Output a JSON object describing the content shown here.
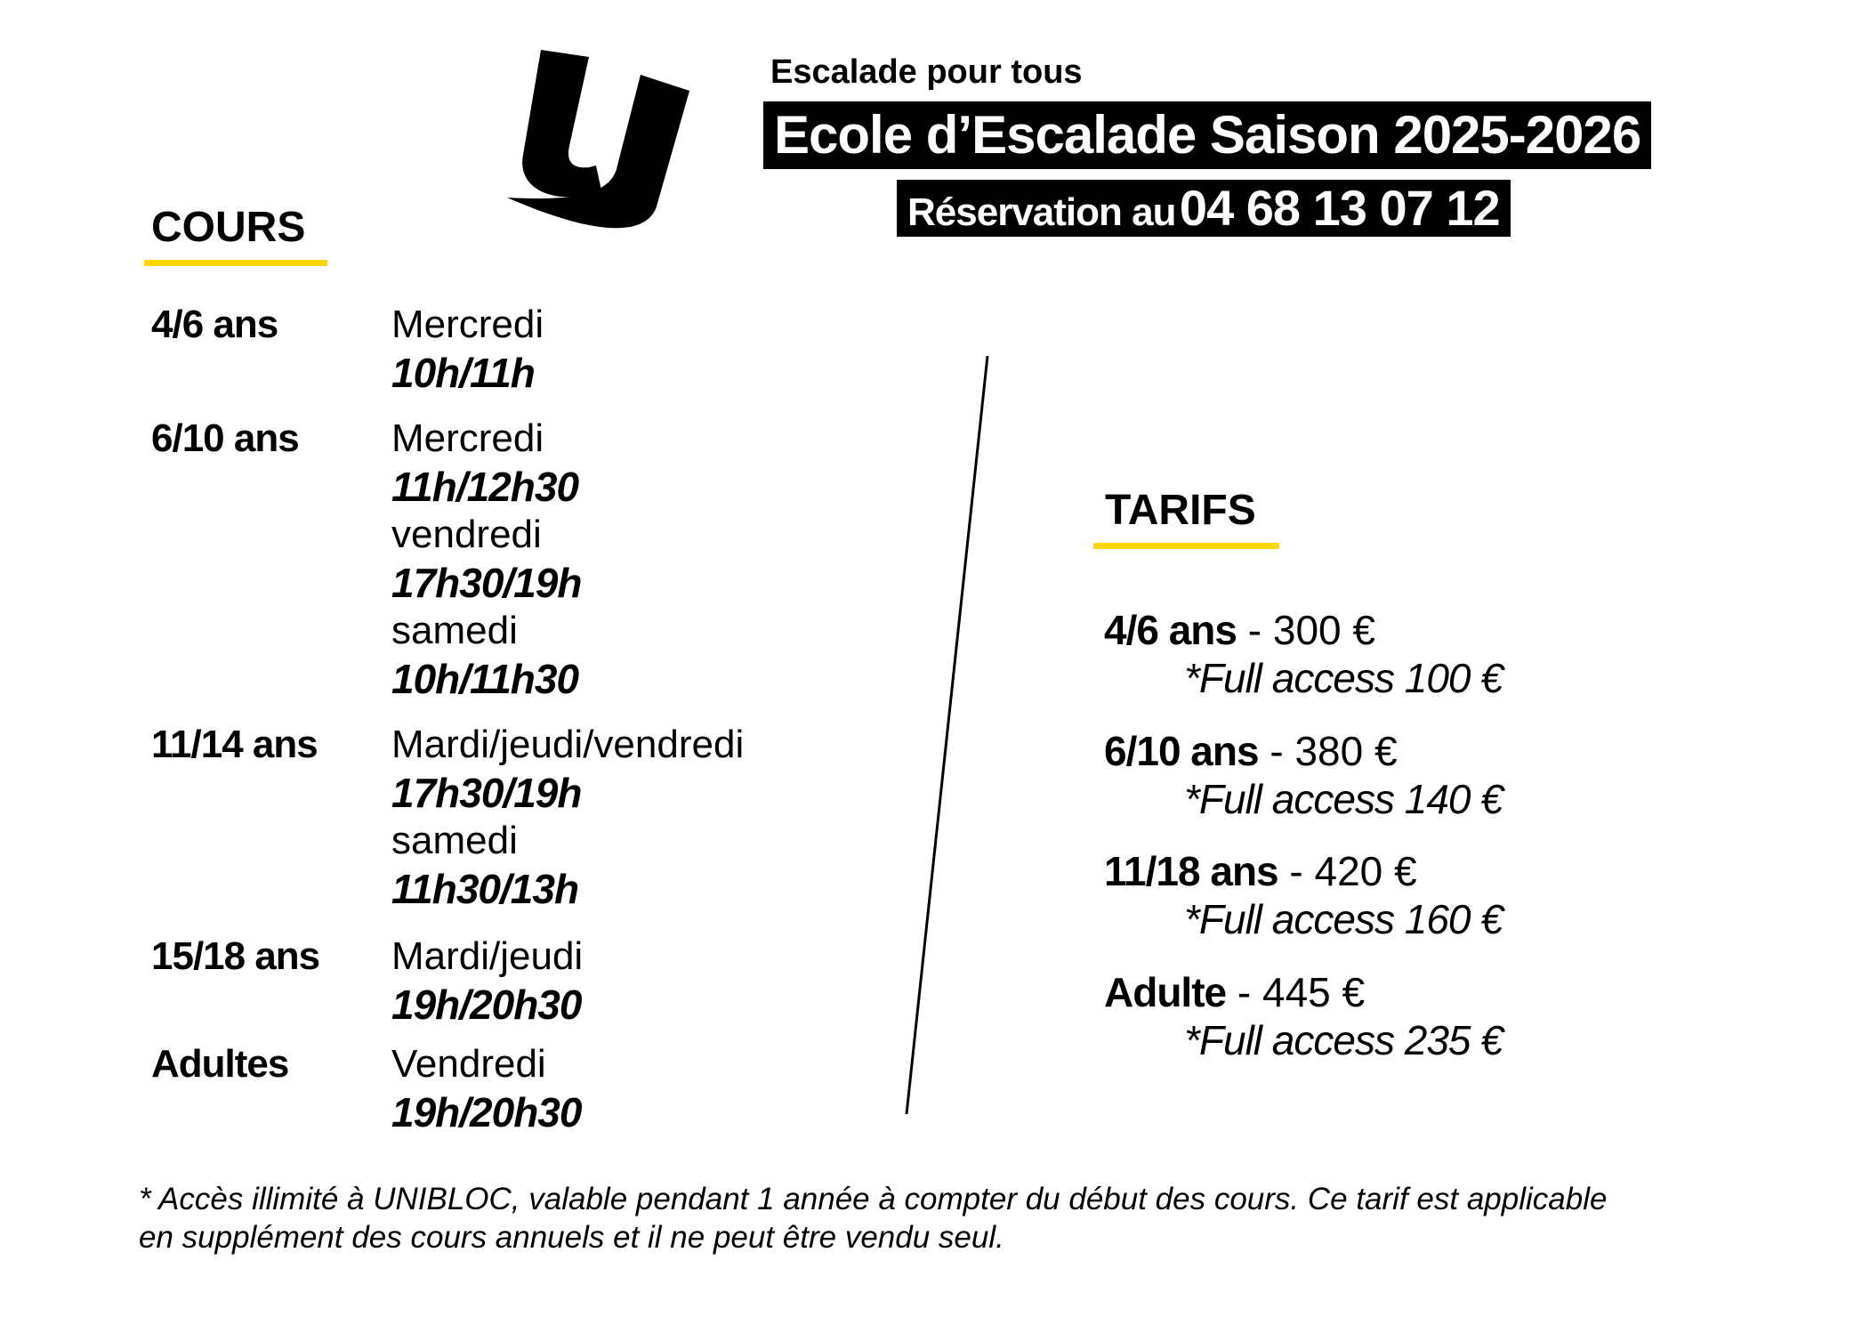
{
  "colors": {
    "accent": "#FFD600",
    "bar": "#000000",
    "text": "#000000"
  },
  "brand": {
    "logo_icon": "unibloc-u-logo"
  },
  "header": {
    "kicker": "Escalade pour tous",
    "title": "Ecole d’Escalade Saison 2025-2026",
    "reservation_label": "Réservation au",
    "reservation_phone": "04 68 13 07 12"
  },
  "cours": {
    "title": "COURS",
    "groups": [
      {
        "age": "4/6 ans",
        "lines": [
          "Mercredi",
          "10h/11h"
        ]
      },
      {
        "age": "6/10 ans",
        "lines": [
          "Mercredi",
          "11h/12h30",
          "vendredi",
          "17h30/19h",
          "samedi",
          "10h/11h30"
        ]
      },
      {
        "age": "11/14 ans",
        "lines": [
          "Mardi/jeudi/vendredi",
          "17h30/19h",
          "samedi",
          "11h30/13h"
        ]
      },
      {
        "age": "15/18 ans",
        "lines": [
          "Mardi/jeudi",
          "19h/20h30"
        ]
      },
      {
        "age": "Adultes",
        "lines": [
          "Vendredi",
          "19h/20h30"
        ]
      }
    ]
  },
  "tarifs": {
    "title": "TARIFS",
    "items": [
      {
        "age": "4/6 ans",
        "price": " - 300 €",
        "full": "*Full access 100 €"
      },
      {
        "age": "6/10 ans",
        "price": " - 380 €",
        "full": "*Full access 140 €"
      },
      {
        "age": "11/18 ans",
        "price": " - 420 €",
        "full": "*Full access 160 €"
      },
      {
        "age": "Adulte",
        "price": " - 445 €",
        "full": "*Full access 235 €"
      }
    ]
  },
  "footnote": {
    "line1": "* Accès illimité à UNIBLOC, valable pendant 1 année à compter du début des cours. Ce tarif est applicable",
    "line2": "en supplément des cours annuels et il ne peut être vendu seul."
  }
}
